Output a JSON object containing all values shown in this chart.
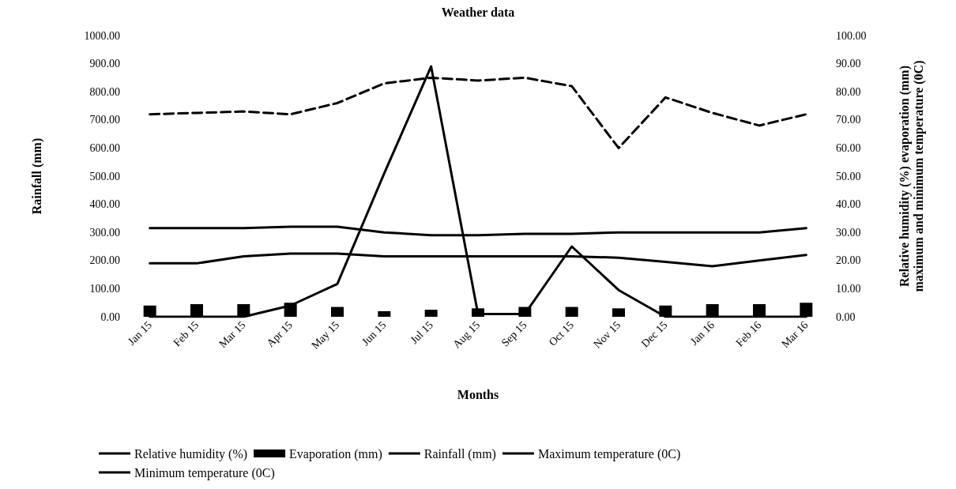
{
  "chart_data": {
    "type": "line",
    "title": "Weather data",
    "xlabel": "Months",
    "ylabel": "Rainfall (mm)",
    "y2label": "Relative humidity (%) evaporation (mm) maximum and minimum temperature (0C)",
    "categories": [
      "Jan 15",
      "Feb 15",
      "Mar 15",
      "Apr 15",
      "May 15",
      "Jun 15",
      "Jul 15",
      "Aug 15",
      "Sep 15",
      "Oct 15",
      "Nov 15",
      "Dec 15",
      "Jan 16",
      "Feb 16",
      "Mar 16"
    ],
    "series": [
      {
        "name": "Relative humidity (%)",
        "axis": "y2",
        "color": "#000000",
        "line_style": "dashed",
        "values": [
          72,
          72.5,
          73,
          72,
          76,
          83,
          85,
          84,
          85,
          82,
          60,
          78,
          72.5,
          68,
          72
        ]
      },
      {
        "name": "Evaporation (mm)",
        "type": "bar",
        "axis": "y2",
        "color": "#000000",
        "values": [
          4,
          4.5,
          4.5,
          5,
          3.5,
          2,
          2.5,
          3,
          3.5,
          3.5,
          3,
          4,
          4.5,
          4.5,
          5
        ]
      },
      {
        "name": "Rainfall (mm)",
        "color": "#000000",
        "line_style": "solid",
        "values": [
          0,
          0,
          0,
          40,
          117,
          510,
          890,
          10,
          10,
          250,
          95,
          0,
          0,
          0,
          0
        ]
      },
      {
        "name": "Maximum temperature (0C)",
        "axis": "y2",
        "color": "#000000",
        "line_style": "solid",
        "values": [
          31.5,
          31.5,
          31.5,
          32,
          32,
          30,
          29,
          29,
          29.5,
          29.5,
          30,
          30,
          30,
          30,
          31.5
        ]
      },
      {
        "name": "Minimum temperature (0C)",
        "axis": "y2",
        "color": "#000000",
        "line_style": "solid",
        "values": [
          19,
          19,
          21.5,
          22.5,
          22.5,
          21.5,
          21.5,
          21.5,
          21.5,
          21.5,
          21,
          19.5,
          18,
          20,
          22
        ]
      }
    ],
    "ylim": [
      0,
      1000
    ],
    "yticks": [
      {
        "value": 0,
        "label": "0.00"
      },
      {
        "value": 100,
        "label": "100.00"
      },
      {
        "value": 200,
        "label": "200.00"
      },
      {
        "value": 300,
        "label": "300.00"
      },
      {
        "value": 400,
        "label": "400.00"
      },
      {
        "value": 500,
        "label": "500.00"
      },
      {
        "value": 600,
        "label": "600.00"
      },
      {
        "value": 700,
        "label": "700.00"
      },
      {
        "value": 800,
        "label": "800.00"
      },
      {
        "value": 900,
        "label": "900.00"
      },
      {
        "value": 1000,
        "label": "1000.00"
      }
    ],
    "y2lim": [
      0,
      100
    ],
    "y2ticks": [
      {
        "value": 0,
        "label": "0.00"
      },
      {
        "value": 10,
        "label": "10.00"
      },
      {
        "value": 20,
        "label": "20.00"
      },
      {
        "value": 30,
        "label": "30.00"
      },
      {
        "value": 40,
        "label": "40.00"
      },
      {
        "value": 50,
        "label": "50.00"
      },
      {
        "value": 60,
        "label": "60.00"
      },
      {
        "value": 70,
        "label": "70.00"
      },
      {
        "value": 80,
        "label": "80.00"
      },
      {
        "value": 90,
        "label": "90.00"
      },
      {
        "value": 100,
        "label": "100.00"
      }
    ],
    "grid": false,
    "legend": "bottom",
    "marker": "none"
  }
}
